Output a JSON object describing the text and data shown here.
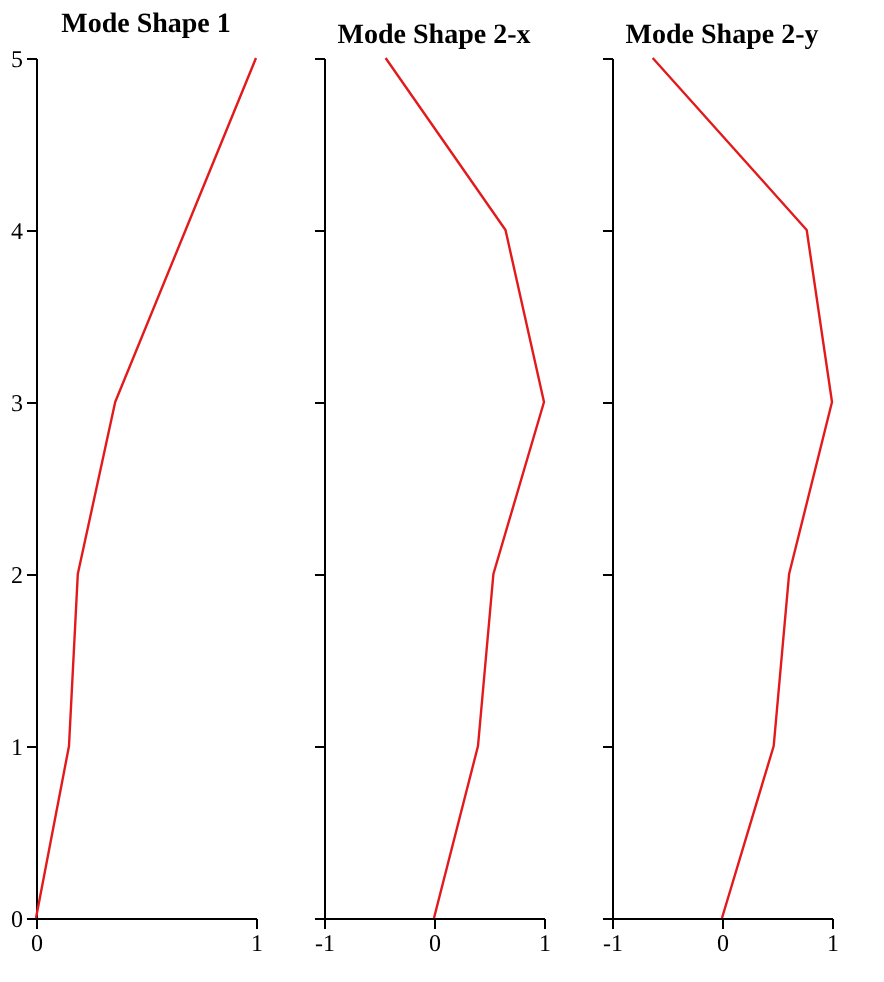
{
  "chart_data": [
    {
      "type": "line",
      "title": "Mode Shape 1",
      "x": [
        0,
        0.15,
        0.19,
        0.36,
        0.68,
        1
      ],
      "values": [
        0,
        1,
        2,
        3,
        4,
        5
      ],
      "color": "#e31a1c",
      "xlim": [
        0,
        1
      ],
      "xticks": [
        0,
        1
      ],
      "ylim": [
        0,
        5
      ],
      "yticks": [
        0,
        1,
        2,
        3,
        4,
        5
      ],
      "grid": false
    },
    {
      "type": "line",
      "title": "Mode Shape 2-x",
      "x": [
        0,
        0.4,
        0.54,
        1,
        0.65,
        -0.44
      ],
      "values": [
        0,
        1,
        2,
        3,
        4,
        5
      ],
      "color": "#e31a1c",
      "xlim": [
        -1,
        1
      ],
      "xticks": [
        -1,
        0,
        1
      ],
      "ylim": [
        0,
        5
      ],
      "yticks": [
        0,
        1,
        2,
        3,
        4,
        5
      ],
      "tick_labels": "x",
      "grid": false
    },
    {
      "type": "line",
      "title": "Mode Shape 2-y",
      "x": [
        0,
        0.47,
        0.61,
        1,
        0.77,
        -0.63
      ],
      "values": [
        0,
        1,
        2,
        3,
        4,
        5
      ],
      "color": "#e31a1c",
      "xlim": [
        -1,
        1
      ],
      "xticks": [
        -1,
        0,
        1
      ],
      "ylim": [
        0,
        5
      ],
      "yticks": [
        0,
        1,
        2,
        3,
        4,
        5
      ],
      "tick_labels": "x",
      "grid": false
    }
  ]
}
